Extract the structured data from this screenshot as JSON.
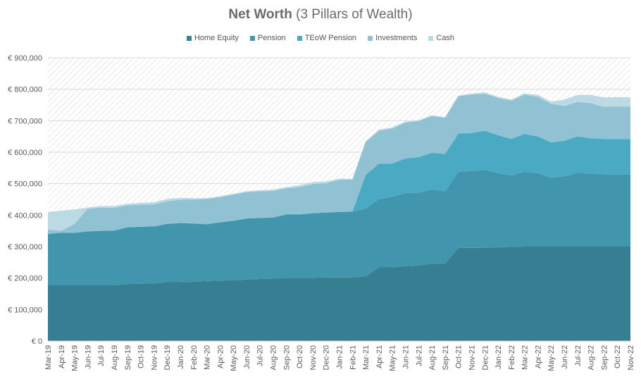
{
  "title_main": "Net Worth",
  "title_sub": "(3 Pillars of Wealth)",
  "colors": {
    "Home Equity": "#367f93",
    "Pension": "#4196ae",
    "TEoW Pension": "#4aaac4",
    "Investments": "#90c2d4",
    "Cash": "#bcdae5"
  },
  "chart_data": {
    "type": "area",
    "stacked": true,
    "title": "Net Worth (3 Pillars of Wealth)",
    "xlabel": "",
    "ylabel": "",
    "ylim": [
      0,
      900000
    ],
    "yticks": [
      0,
      100000,
      200000,
      300000,
      400000,
      500000,
      600000,
      700000,
      800000,
      900000
    ],
    "ytick_labels": [
      "€ 0",
      "€ 100,000",
      "€ 200,000",
      "€ 300,000",
      "€ 400,000",
      "€ 500,000",
      "€ 600,000",
      "€ 700,000",
      "€ 800,000",
      "€ 900,000"
    ],
    "legend_position": "top",
    "x": [
      "Mar-19",
      "Apr-19",
      "May-19",
      "Jun-19",
      "Jul-19",
      "Aug-19",
      "Sep-19",
      "Oct-19",
      "Nov-19",
      "Dec-19",
      "Jan-20",
      "Feb-20",
      "Mar-20",
      "Apr-20",
      "May-20",
      "Jun-20",
      "Jul-20",
      "Aug-20",
      "Sep-20",
      "Oct-20",
      "Nov-20",
      "Dec-20",
      "Jan-21",
      "Feb-21",
      "Mar-21",
      "Apr-21",
      "May-21",
      "Jun-21",
      "Jul-21",
      "Aug-21",
      "Sep-21",
      "Oct-21",
      "Nov-21",
      "Dec-21",
      "Jan-22",
      "Feb-22",
      "Mar-22",
      "Apr-22",
      "May-22",
      "Jun-22",
      "Jul-22",
      "Aug-22",
      "Sep-22",
      "Oct-22",
      "Nov-22"
    ],
    "series": [
      {
        "name": "Home Equity",
        "values": [
          177000,
          177000,
          177000,
          177000,
          177000,
          177000,
          181000,
          182000,
          183000,
          187000,
          187000,
          188000,
          191000,
          192000,
          193000,
          195000,
          197000,
          198000,
          201000,
          201000,
          201000,
          202000,
          202000,
          202000,
          205000,
          234000,
          234000,
          238000,
          240000,
          246000,
          246000,
          296000,
          296000,
          296000,
          298000,
          299000,
          300000,
          300000,
          300000,
          300000,
          300000,
          300000,
          300000,
          300000,
          300000
        ]
      },
      {
        "name": "Pension",
        "values": [
          163000,
          167000,
          167000,
          171000,
          173000,
          174000,
          180000,
          181000,
          181000,
          185000,
          188000,
          185000,
          180000,
          185000,
          189000,
          194000,
          194000,
          194000,
          201000,
          201000,
          205000,
          206000,
          208000,
          209000,
          215000,
          217000,
          224000,
          232000,
          231000,
          236000,
          230000,
          242000,
          244000,
          248000,
          236000,
          227000,
          238000,
          233000,
          219000,
          223000,
          235000,
          232000,
          230000,
          230000,
          230000
        ]
      },
      {
        "name": "TEoW Pension",
        "values": [
          0,
          0,
          0,
          0,
          0,
          0,
          0,
          0,
          0,
          0,
          0,
          0,
          0,
          0,
          0,
          0,
          0,
          0,
          0,
          0,
          0,
          0,
          0,
          0,
          108000,
          112000,
          106000,
          110000,
          113000,
          116000,
          118000,
          121000,
          121000,
          124000,
          120000,
          116000,
          120000,
          117000,
          112000,
          113000,
          115000,
          112000,
          112000,
          112000,
          112000
        ]
      },
      {
        "name": "Investments",
        "values": [
          14000,
          6000,
          28000,
          72000,
          74000,
          72000,
          70000,
          70000,
          70000,
          72000,
          74000,
          76000,
          80000,
          80000,
          83000,
          84000,
          85000,
          85000,
          83000,
          87000,
          93000,
          93000,
          102000,
          102000,
          105000,
          105000,
          111000,
          114000,
          115000,
          117000,
          116000,
          119000,
          122000,
          118000,
          118000,
          122000,
          125000,
          126000,
          123000,
          111000,
          110000,
          112000,
          102000,
          103000,
          103000
        ]
      },
      {
        "name": "Cash",
        "values": [
          56000,
          64000,
          46000,
          4000,
          5000,
          6000,
          5000,
          6000,
          7000,
          7000,
          6000,
          5000,
          3000,
          3000,
          3000,
          3000,
          3000,
          4000,
          4000,
          6000,
          6000,
          6000,
          4000,
          2000,
          1000,
          4000,
          4000,
          3000,
          3000,
          2000,
          1000,
          2000,
          3000,
          4000,
          4000,
          3000,
          4000,
          6000,
          7000,
          20000,
          22000,
          26000,
          30000,
          30000,
          29000
        ]
      }
    ]
  }
}
